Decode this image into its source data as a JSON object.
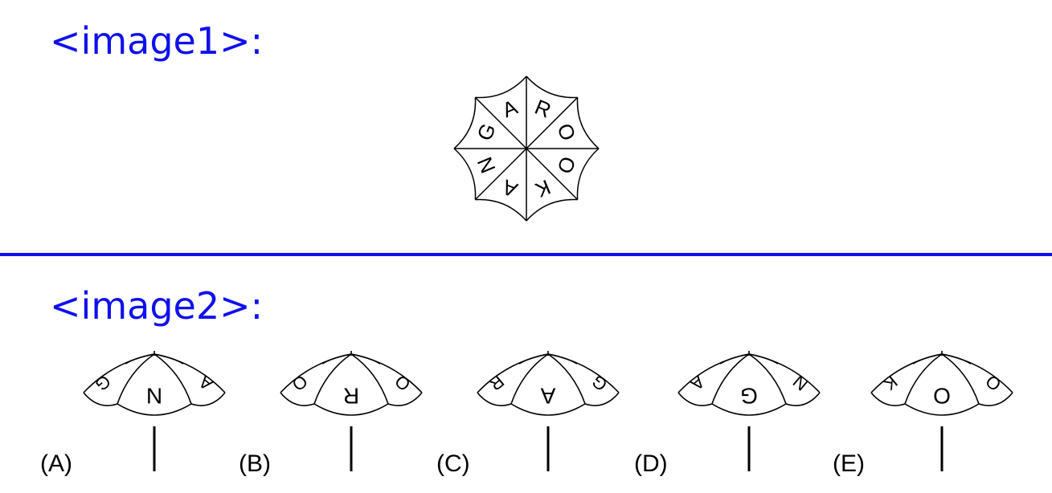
{
  "header1": "<image1>:",
  "header2": "<image2>:",
  "wheel": {
    "letters": [
      "G",
      "A",
      "R",
      "O",
      "O",
      "K",
      "A",
      "N"
    ],
    "line_color": "#000000"
  },
  "options": [
    {
      "label": "(A)",
      "letters": [
        "G",
        "N",
        "A"
      ]
    },
    {
      "label": "(B)",
      "letters": [
        "O",
        "R",
        "O"
      ]
    },
    {
      "label": "(C)",
      "letters": [
        "R",
        "A",
        "G"
      ]
    },
    {
      "label": "(D)",
      "letters": [
        "A",
        "G",
        "N"
      ]
    },
    {
      "label": "(E)",
      "letters": [
        "K",
        "O",
        "O"
      ]
    }
  ],
  "colors": {
    "accent": "#1010ee",
    "ink": "#000000"
  }
}
